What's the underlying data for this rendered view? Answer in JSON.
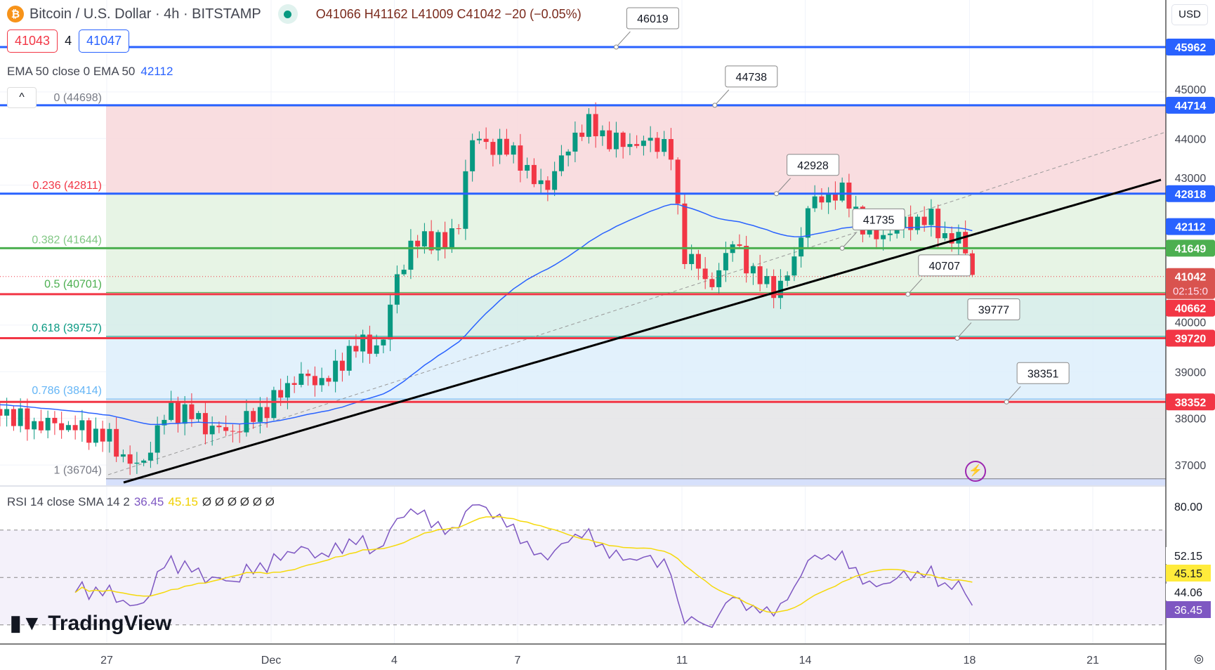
{
  "header": {
    "symbol": "Bitcoin / U.S. Dollar · 4h · BITSTAMP",
    "coin_glyph": "₿",
    "ohlc": "O41066 H41162 L41009 C41042 −20 (−0.05%)"
  },
  "bid": "41043",
  "spread": "4",
  "ask": "41047",
  "ema": {
    "label": "EMA 50 close 0 EMA 50",
    "value": "42112"
  },
  "collapse_glyph": "^",
  "currency": "USD",
  "rsi": {
    "label": "RSI 14 close SMA 14 2",
    "rsi_value": "36.45",
    "sma_value": "45.15",
    "extras": "Ø Ø Ø Ø Ø Ø"
  },
  "logo": "TradingView",
  "chart_data": {
    "type": "candlestick",
    "x_axis_ticks": [
      {
        "label": "27",
        "day": 0
      },
      {
        "label": "Dec",
        "day": 4
      },
      {
        "label": "4",
        "day": 7
      },
      {
        "label": "7",
        "day": 10
      },
      {
        "label": "11",
        "day": 14
      },
      {
        "label": "14",
        "day": 17
      },
      {
        "label": "18",
        "day": 21
      },
      {
        "label": "21",
        "day": 24
      }
    ],
    "y_axis_ticks": [
      45000,
      44000,
      43000,
      40000,
      39000,
      38000,
      37000
    ],
    "ylim": [
      36500,
      46500
    ],
    "close_anchors": [
      [
        -2.6,
        38200
      ],
      [
        -2,
        37900
      ],
      [
        -1,
        37850
      ],
      [
        0,
        37600
      ],
      [
        0.5,
        37100
      ],
      [
        0.8,
        36900
      ],
      [
        1,
        37300
      ],
      [
        1.5,
        38200
      ],
      [
        2,
        38100
      ],
      [
        2.5,
        37800
      ],
      [
        3,
        37700
      ],
      [
        3.5,
        38000
      ],
      [
        4,
        38300
      ],
      [
        4.6,
        38900
      ],
      [
        5,
        38800
      ],
      [
        5.5,
        38900
      ],
      [
        6,
        39600
      ],
      [
        6.5,
        39500
      ],
      [
        6.8,
        39800
      ],
      [
        7,
        40900
      ],
      [
        7.4,
        41700
      ],
      [
        8,
        41900
      ],
      [
        8.3,
        41700
      ],
      [
        8.6,
        42300
      ],
      [
        8.8,
        43800
      ],
      [
        9,
        44000
      ],
      [
        9.5,
        43800
      ],
      [
        10,
        43700
      ],
      [
        10.3,
        43100
      ],
      [
        10.7,
        43000
      ],
      [
        11,
        43400
      ],
      [
        11.4,
        44100
      ],
      [
        11.8,
        44300
      ],
      [
        12.3,
        43900
      ],
      [
        13,
        43900
      ],
      [
        13.7,
        43900
      ],
      [
        14,
        41600
      ],
      [
        14.4,
        41300
      ],
      [
        14.6,
        40700
      ],
      [
        15,
        41400
      ],
      [
        15.3,
        41800
      ],
      [
        15.7,
        41100
      ],
      [
        16,
        40900
      ],
      [
        16.4,
        40800
      ],
      [
        16.8,
        41500
      ],
      [
        17,
        42500
      ],
      [
        17.4,
        42700
      ],
      [
        17.8,
        42900
      ],
      [
        18.2,
        42500
      ],
      [
        18.6,
        41800
      ],
      [
        19,
        42000
      ],
      [
        19.5,
        42200
      ],
      [
        20,
        42300
      ],
      [
        20.4,
        41900
      ],
      [
        20.8,
        41800
      ],
      [
        21,
        41400
      ],
      [
        21.1,
        41042
      ]
    ],
    "ema_seed": 38300,
    "rsi_axis": [
      80,
      52.15,
      45.15,
      44.06,
      36.45
    ],
    "price_labels": [
      {
        "v": 45962,
        "label": "45962",
        "color": "#2962ff"
      },
      {
        "v": 44714,
        "label": "44714",
        "color": "#2962ff"
      },
      {
        "v": 42818,
        "label": "42818",
        "color": "#2962ff"
      },
      {
        "v": 42112,
        "label": "42112",
        "color": "#2962ff"
      },
      {
        "v": 41649,
        "label": "41649",
        "color": "#4caf50"
      },
      {
        "v": 41042,
        "label": "41042",
        "sub": "02:15:0",
        "color": "#d9534f"
      },
      {
        "v": 40662,
        "label": "40662",
        "color": "#f23645"
      },
      {
        "v": 39720,
        "label": "39720",
        "color": "#f23645"
      },
      {
        "v": 38352,
        "label": "38352",
        "color": "#f23645"
      }
    ],
    "hlines": [
      {
        "v": 45962,
        "color": "#2962ff"
      },
      {
        "v": 44714,
        "color": "#2962ff"
      },
      {
        "v": 42818,
        "color": "#2962ff"
      },
      {
        "v": 41649,
        "color": "#4caf50"
      },
      {
        "v": 40662,
        "color": "#f23645"
      },
      {
        "v": 39720,
        "color": "#f23645"
      },
      {
        "v": 38352,
        "color": "#f23645"
      }
    ],
    "callouts": [
      {
        "label": "46019",
        "day": 12.4,
        "v": 45962
      },
      {
        "label": "44738",
        "day": 14.8,
        "v": 44714
      },
      {
        "label": "42928",
        "day": 16.3,
        "v": 42818
      },
      {
        "label": "41735",
        "day": 17.9,
        "v": 41649
      },
      {
        "label": "40707",
        "day": 19.5,
        "v": 40662
      },
      {
        "label": "39777",
        "day": 20.7,
        "v": 39720
      },
      {
        "label": "38351",
        "day": 21.9,
        "v": 38352
      }
    ],
    "fib": [
      {
        "r": "0",
        "v": 44698,
        "color": "#787b86"
      },
      {
        "r": "0.236",
        "v": 42811,
        "color": "#f23645"
      },
      {
        "r": "0.382",
        "v": 41644,
        "color": "#81c784"
      },
      {
        "r": "0.5",
        "v": 40701,
        "color": "#4caf50"
      },
      {
        "r": "0.618",
        "v": 39757,
        "color": "#089981"
      },
      {
        "r": "0.786",
        "v": 38414,
        "color": "#64b5f6"
      },
      {
        "r": "1",
        "v": 36704,
        "color": "#787b86"
      }
    ]
  }
}
